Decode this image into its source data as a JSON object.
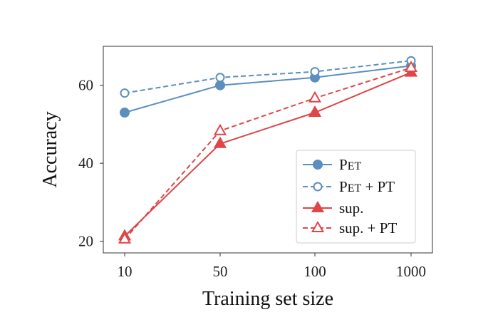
{
  "chart_data": {
    "type": "line",
    "xlabel": "Training set size",
    "ylabel": "Accuracy",
    "categories": [
      "10",
      "50",
      "100",
      "1000"
    ],
    "ylim": [
      17,
      70
    ],
    "yticks": [
      20,
      40,
      60
    ],
    "grid": false,
    "legend_position": "lower-right",
    "series": [
      {
        "name": "PET",
        "color": "#5b8fbd",
        "linestyle": "solid",
        "marker": "circle",
        "filled": true,
        "values": [
          53,
          60,
          62,
          65
        ]
      },
      {
        "name": "PET + PT",
        "color": "#5b8fbd",
        "linestyle": "dashed",
        "marker": "circle",
        "filled": false,
        "values": [
          58,
          62,
          63.5,
          66.3
        ]
      },
      {
        "name": "sup.",
        "color": "#e04548",
        "linestyle": "solid",
        "marker": "triangle",
        "filled": true,
        "values": [
          21.3,
          45,
          53,
          63.3
        ]
      },
      {
        "name": "sup. + PT",
        "color": "#e04548",
        "linestyle": "dashed",
        "marker": "triangle",
        "filled": false,
        "values": [
          20.5,
          48.3,
          56.7,
          64.5
        ]
      }
    ]
  }
}
